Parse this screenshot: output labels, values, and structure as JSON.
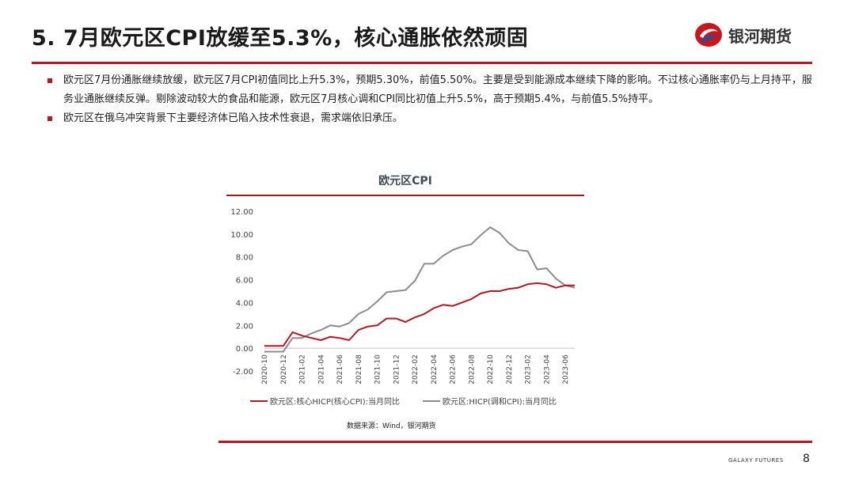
{
  "slide": {
    "title": "5. 7月欧元区CPI放缓至5.3%，核心通胀依然顽固",
    "brand_name": "银河期货",
    "bullets": [
      "欧元区7月份通胀继续放缓，欧元区7月CPI初值同比上升5.3%，预期5.30%，前值5.50%。主要是受到能源成本继续下降的影响。不过核心通胀率仍与上月持平，服务业通胀继续反弹。剔除波动较大的食品和能源，欧元区7月核心调和CPI同比初值上升5.5%，高于预期5.4%，与前值5.5%持平。",
      "欧元区在俄乌冲突背景下主要经济体已陷入技术性衰退，需求端依旧承压。"
    ],
    "source": "数据来源：Wind，银河期货",
    "footer_brand": "GALAXY FUTURES",
    "page_number": "8"
  },
  "colors": {
    "accent": "#b3191f",
    "series_core": "#b3191f",
    "series_headline": "#8c8c8c",
    "logo_blue": "#1f4fa0"
  },
  "icons": {
    "logo": "galaxy-futures-logo-icon"
  },
  "chart_data": {
    "type": "line",
    "title": "欧元区CPI",
    "xlabel": "",
    "ylabel": "",
    "ylim": [
      -2,
      12
    ],
    "yticks": [
      "12.00",
      "10.00",
      "8.00",
      "6.00",
      "4.00",
      "2.00",
      "0.00",
      "-2.00"
    ],
    "ytick_values": [
      12,
      10,
      8,
      6,
      4,
      2,
      0,
      -2
    ],
    "x": [
      "2020-10",
      "2020-11",
      "2020-12",
      "2021-01",
      "2021-02",
      "2021-03",
      "2021-04",
      "2021-05",
      "2021-06",
      "2021-07",
      "2021-08",
      "2021-09",
      "2021-10",
      "2021-11",
      "2021-12",
      "2022-01",
      "2022-02",
      "2022-03",
      "2022-04",
      "2022-05",
      "2022-06",
      "2022-07",
      "2022-08",
      "2022-09",
      "2022-10",
      "2022-11",
      "2022-12",
      "2023-01",
      "2023-02",
      "2023-03",
      "2023-04",
      "2023-05",
      "2023-06",
      "2023-07"
    ],
    "xtick_labels": [
      "2020-10",
      "2020-12",
      "2021-02",
      "2021-04",
      "2021-06",
      "2021-08",
      "2021-10",
      "2021-12",
      "2022-02",
      "2022-04",
      "2022-06",
      "2022-08",
      "2022-10",
      "2022-12",
      "2023-02",
      "2023-04",
      "2023-06"
    ],
    "legend_position": "bottom",
    "grid": false,
    "series": [
      {
        "name": "欧元区:核心HICP(核心CPI):当月同比",
        "values": [
          0.2,
          0.2,
          0.2,
          1.4,
          1.1,
          0.9,
          0.7,
          1.0,
          0.9,
          0.7,
          1.6,
          1.9,
          2.0,
          2.6,
          2.6,
          2.3,
          2.7,
          3.0,
          3.5,
          3.8,
          3.7,
          4.0,
          4.3,
          4.8,
          5.0,
          5.0,
          5.2,
          5.3,
          5.6,
          5.7,
          5.6,
          5.3,
          5.5,
          5.5
        ]
      },
      {
        "name": "欧元区:HICP(调和CPI):当月同比",
        "values": [
          -0.3,
          -0.3,
          -0.3,
          0.9,
          0.9,
          1.3,
          1.6,
          2.0,
          1.9,
          2.2,
          3.0,
          3.4,
          4.1,
          4.9,
          5.0,
          5.1,
          5.9,
          7.4,
          7.4,
          8.1,
          8.6,
          8.9,
          9.1,
          9.9,
          10.6,
          10.1,
          9.2,
          8.6,
          8.5,
          6.9,
          7.0,
          6.1,
          5.5,
          5.3
        ]
      }
    ]
  }
}
